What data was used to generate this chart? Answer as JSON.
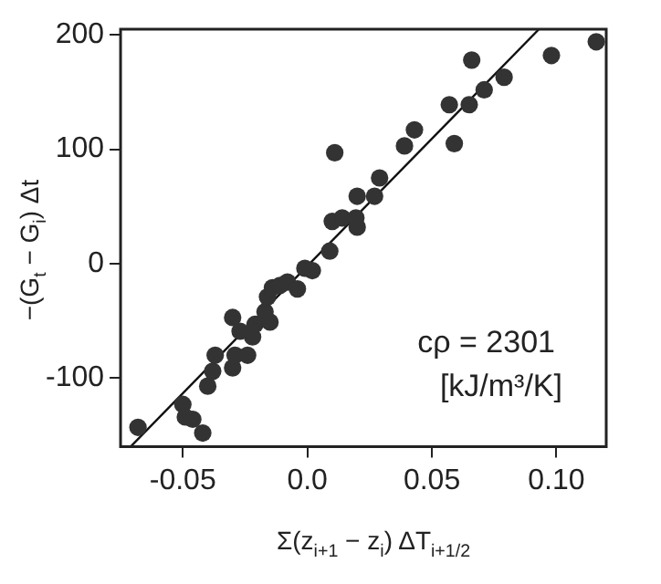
{
  "chart_data": {
    "type": "scatter",
    "xlabel": "Σ(z$_{i+1}$ − z$_{i}$) ΔT$_{i+1/2}$",
    "ylabel": "−(G$_{t}$ − G$_{i}$) Δt",
    "xlim": [
      -0.075,
      0.12
    ],
    "ylim": [
      -160,
      205
    ],
    "xticks": [
      -0.05,
      {
        "value": 0,
        "label": "0.0"
      },
      0.05,
      {
        "value": 0.1,
        "label": "0.10"
      }
    ],
    "yticks": [
      -100,
      0,
      100,
      200
    ],
    "grid": false,
    "legend": false,
    "marker": "circle",
    "annotations": [
      "cρ = 2301",
      "[kJ/m³/K]"
    ],
    "series": [
      {
        "color": "#333333",
        "x": [
          -0.068,
          -0.05,
          -0.049,
          -0.046,
          -0.042,
          -0.04,
          -0.038,
          -0.037,
          -0.03,
          -0.029,
          -0.03,
          -0.024,
          -0.022,
          -0.027,
          -0.021,
          -0.017,
          -0.015,
          -0.016,
          -0.014,
          -0.011,
          -0.008,
          -0.004,
          -0.001,
          0.002,
          0.009,
          0.01,
          0.014,
          0.011,
          0.02,
          0.02,
          0.0195,
          0.027,
          0.029,
          0.039,
          0.043,
          0.057,
          0.059,
          0.065,
          0.066,
          0.071,
          0.079,
          0.098,
          0.116
        ],
        "values": [
          -143,
          -123,
          -134,
          -136,
          -148,
          -107,
          -94,
          -80,
          -91,
          -80,
          -47,
          -80,
          -64,
          -59,
          -53,
          -42,
          -51,
          -29,
          -21,
          -19,
          -16,
          -22,
          -4,
          -6,
          11,
          37,
          40,
          97,
          59,
          32,
          40,
          59,
          75,
          103,
          117,
          139,
          105,
          139,
          178,
          152,
          163,
          182,
          194
        ]
      },
      {
        "type": "line",
        "color": "#111111",
        "marker": "none",
        "x": [
          -0.071,
          0.093
        ],
        "values": [
          -160,
          205
        ]
      }
    ]
  }
}
